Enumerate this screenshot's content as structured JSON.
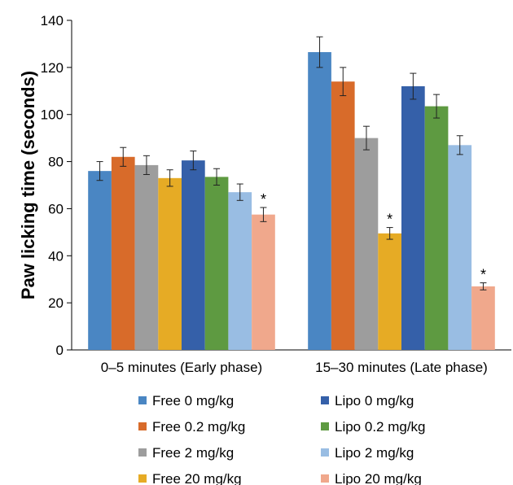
{
  "chart_data": {
    "type": "bar",
    "title": "",
    "xlabel": "",
    "ylabel": "Paw licking time (seconds)",
    "ylim": [
      0,
      140
    ],
    "yticks": [
      0,
      20,
      40,
      60,
      80,
      100,
      120,
      140
    ],
    "grid": false,
    "legend_position": "bottom",
    "categories": [
      "0–5 minutes (Early phase)",
      "15–30 minutes (Late phase)"
    ],
    "series": [
      {
        "name": "Free 0 mg/kg",
        "color": "#4a86c3",
        "values": [
          76,
          126.5
        ],
        "errors": [
          4,
          6.5
        ],
        "significant": [
          false,
          false
        ]
      },
      {
        "name": "Free 0.2 mg/kg",
        "color": "#d86b2a",
        "values": [
          82,
          114
        ],
        "errors": [
          4,
          6
        ],
        "significant": [
          false,
          false
        ]
      },
      {
        "name": "Free 2 mg/kg",
        "color": "#9d9d9d",
        "values": [
          78.5,
          90
        ],
        "errors": [
          4,
          5
        ],
        "significant": [
          false,
          false
        ]
      },
      {
        "name": "Free 20 mg/kg",
        "color": "#e6ab25",
        "values": [
          73,
          49.5
        ],
        "errors": [
          3.5,
          2.5
        ],
        "significant": [
          false,
          true
        ]
      },
      {
        "name": "Lipo 0 mg/kg",
        "color": "#3560a9",
        "values": [
          80.5,
          112
        ],
        "errors": [
          4,
          5.5
        ],
        "significant": [
          false,
          false
        ]
      },
      {
        "name": "Lipo 0.2 mg/kg",
        "color": "#5e9a41",
        "values": [
          73.5,
          103.5
        ],
        "errors": [
          3.5,
          5
        ],
        "significant": [
          false,
          false
        ]
      },
      {
        "name": "Lipo 2 mg/kg",
        "color": "#99bde3",
        "values": [
          67,
          87
        ],
        "errors": [
          3.5,
          4
        ],
        "significant": [
          false,
          false
        ]
      },
      {
        "name": "Lipo 20 mg/kg",
        "color": "#f0a88c",
        "values": [
          57.5,
          27
        ],
        "errors": [
          3,
          1.5
        ],
        "significant": [
          true,
          true
        ]
      }
    ],
    "significance_marker": "*",
    "legend_order": [
      0,
      4,
      1,
      5,
      2,
      6,
      3,
      7
    ]
  }
}
